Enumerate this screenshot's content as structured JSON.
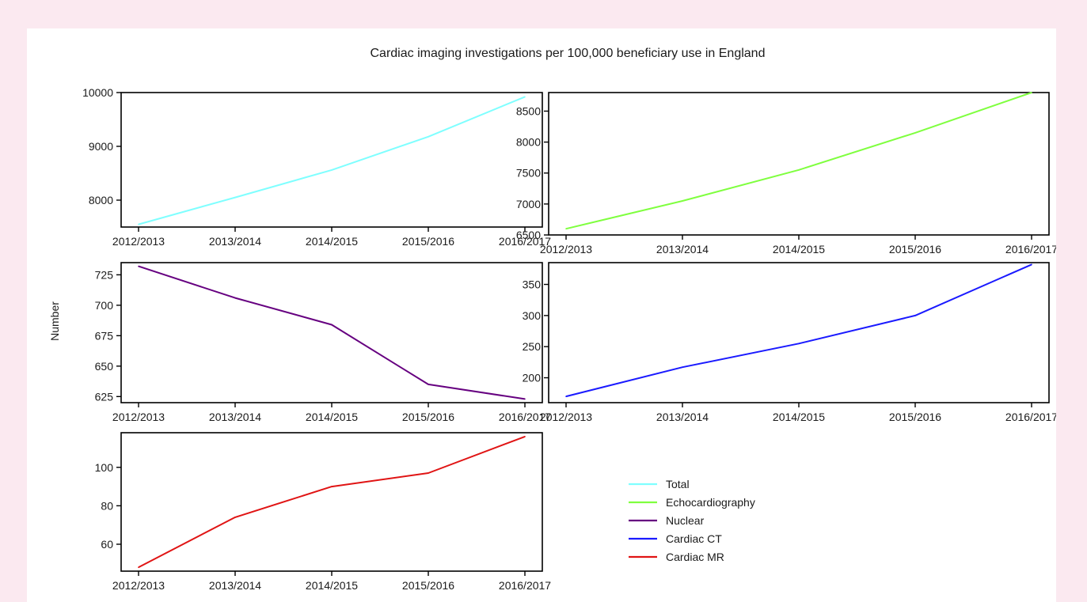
{
  "figure": {
    "title": "Cardiac imaging investigations per 100,000 beneficiary use in England",
    "ylabel": "Number"
  },
  "chart_data": [
    {
      "type": "line",
      "x": [
        "2012/2013",
        "2013/2014",
        "2014/2015",
        "2015/2016",
        "2016/2017"
      ],
      "series": [
        {
          "name": "Total",
          "color": "#7fffff",
          "values": [
            7550,
            8050,
            8560,
            9180,
            9920
          ]
        }
      ],
      "yticks": [
        8000,
        9000,
        10000
      ],
      "ylim": [
        7500,
        10000
      ]
    },
    {
      "type": "line",
      "x": [
        "2012/2013",
        "2013/2014",
        "2014/2015",
        "2015/2016",
        "2016/2017"
      ],
      "series": [
        {
          "name": "Echocardiography",
          "color": "#7fff3f",
          "values": [
            6600,
            7050,
            7550,
            8150,
            8800
          ]
        }
      ],
      "yticks": [
        6500,
        7000,
        7500,
        8000,
        8500
      ],
      "ylim": [
        6500,
        8800
      ]
    },
    {
      "type": "line",
      "x": [
        "2012/2013",
        "2013/2014",
        "2014/2015",
        "2015/2016",
        "2016/2017"
      ],
      "series": [
        {
          "name": "Nuclear",
          "color": "#660080",
          "values": [
            732,
            706,
            684,
            635,
            623
          ]
        }
      ],
      "yticks": [
        625,
        650,
        675,
        700,
        725
      ],
      "ylim": [
        620,
        735
      ]
    },
    {
      "type": "line",
      "x": [
        "2012/2013",
        "2013/2014",
        "2014/2015",
        "2015/2016",
        "2016/2017"
      ],
      "series": [
        {
          "name": "Cardiac CT",
          "color": "#1a1aff",
          "values": [
            170,
            217,
            255,
            300,
            382
          ]
        }
      ],
      "yticks": [
        200,
        250,
        300,
        350
      ],
      "ylim": [
        160,
        385
      ]
    },
    {
      "type": "line",
      "x": [
        "2012/2013",
        "2013/2014",
        "2014/2015",
        "2015/2016",
        "2016/2017"
      ],
      "series": [
        {
          "name": "Cardiac MR",
          "color": "#e01414",
          "values": [
            48,
            74,
            90,
            97,
            116
          ]
        }
      ],
      "yticks": [
        60,
        80,
        100
      ],
      "ylim": [
        46,
        118
      ]
    }
  ],
  "legend": {
    "position": "bottom-right",
    "items": [
      {
        "label": "Total",
        "color": "#7fffff"
      },
      {
        "label": "Echocardiography",
        "color": "#7fff3f"
      },
      {
        "label": "Nuclear",
        "color": "#660080"
      },
      {
        "label": "Cardiac CT",
        "color": "#1a1aff"
      },
      {
        "label": "Cardiac MR",
        "color": "#e01414"
      }
    ]
  }
}
